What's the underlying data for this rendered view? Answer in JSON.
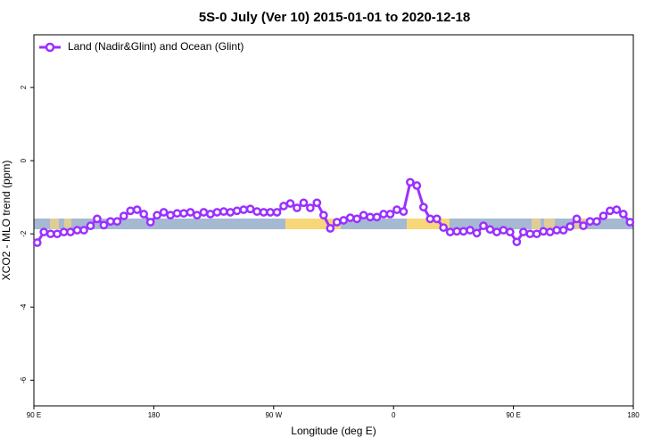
{
  "chart_data": {
    "type": "line",
    "title": "5S-0 July (Ver 10)   2015-01-01 to 2020-12-18",
    "x_label": "Longitude (deg E)",
    "y_label": "XCO2 - MLO trend (ppm)",
    "xlim": [
      90,
      540
    ],
    "xticks": [
      {
        "value": 90,
        "label": "90 E"
      },
      {
        "value": 180,
        "label": "180"
      },
      {
        "value": 270,
        "label": "90 W"
      },
      {
        "value": 360,
        "label": "0"
      },
      {
        "value": 450,
        "label": "90 E"
      },
      {
        "value": 540,
        "label": "180"
      }
    ],
    "ylim": [
      -6.7,
      3.44
    ],
    "yticks": [
      -6,
      -4,
      -2,
      0,
      2
    ],
    "legend": "top-left",
    "x": [
      92.5,
      97.5,
      102.5,
      107.5,
      112.5,
      117.5,
      122.5,
      127.5,
      132.5,
      137.5,
      142.5,
      147.5,
      152.5,
      157.5,
      162.5,
      167.5,
      172.5,
      177.5,
      182.5,
      187.5,
      192.5,
      197.5,
      202.5,
      207.5,
      212.5,
      217.5,
      222.5,
      227.5,
      232.5,
      237.5,
      242.5,
      247.5,
      252.5,
      257.5,
      262.5,
      267.5,
      272.5,
      277.5,
      282.5,
      287.5,
      292.5,
      297.5,
      302.5,
      307.5,
      312.5,
      317.5,
      322.5,
      327.5,
      332.5,
      337.5,
      342.5,
      347.5,
      352.5,
      357.5,
      362.5,
      367.5,
      372.5,
      377.5,
      382.5,
      387.5,
      392.5,
      397.5,
      402.5,
      407.5,
      412.5,
      417.5,
      422.5,
      427.5,
      432.5,
      437.5,
      442.5,
      447.5,
      452.5,
      457.5,
      462.5,
      467.5,
      472.5,
      477.5,
      482.5,
      487.5,
      492.5,
      497.5,
      502.5,
      507.5,
      512.5,
      517.5,
      522.5,
      527.5,
      532.5,
      537.5
    ],
    "series": [
      {
        "name": "Land (Nadir&Glint) and Ocean (Glint)",
        "color": "#9b30ff",
        "values": [
          -2.24,
          -1.95,
          -2.0,
          -2.0,
          -1.95,
          -1.95,
          -1.9,
          -1.9,
          -1.78,
          -1.59,
          -1.76,
          -1.66,
          -1.66,
          -1.51,
          -1.37,
          -1.34,
          -1.46,
          -1.68,
          -1.49,
          -1.41,
          -1.49,
          -1.44,
          -1.44,
          -1.41,
          -1.49,
          -1.41,
          -1.46,
          -1.41,
          -1.39,
          -1.41,
          -1.37,
          -1.34,
          -1.32,
          -1.39,
          -1.41,
          -1.41,
          -1.41,
          -1.24,
          -1.17,
          -1.29,
          -1.15,
          -1.29,
          -1.15,
          -1.49,
          -1.85,
          -1.68,
          -1.63,
          -1.56,
          -1.59,
          -1.49,
          -1.54,
          -1.54,
          -1.46,
          -1.46,
          -1.34,
          -1.39,
          -0.59,
          -0.68,
          -1.27,
          -1.59,
          -1.59,
          -1.83,
          -1.95,
          -1.93,
          -1.93,
          -1.9,
          -1.98,
          -1.78,
          -1.88,
          -1.95,
          -1.9,
          -1.95,
          -2.22,
          -1.95,
          -2.0,
          -2.0,
          -1.93,
          -1.95,
          -1.9,
          -1.9,
          -1.8,
          -1.59,
          -1.78,
          -1.66,
          -1.66,
          -1.51,
          -1.37,
          -1.34,
          -1.46,
          -1.68
        ]
      }
    ]
  }
}
